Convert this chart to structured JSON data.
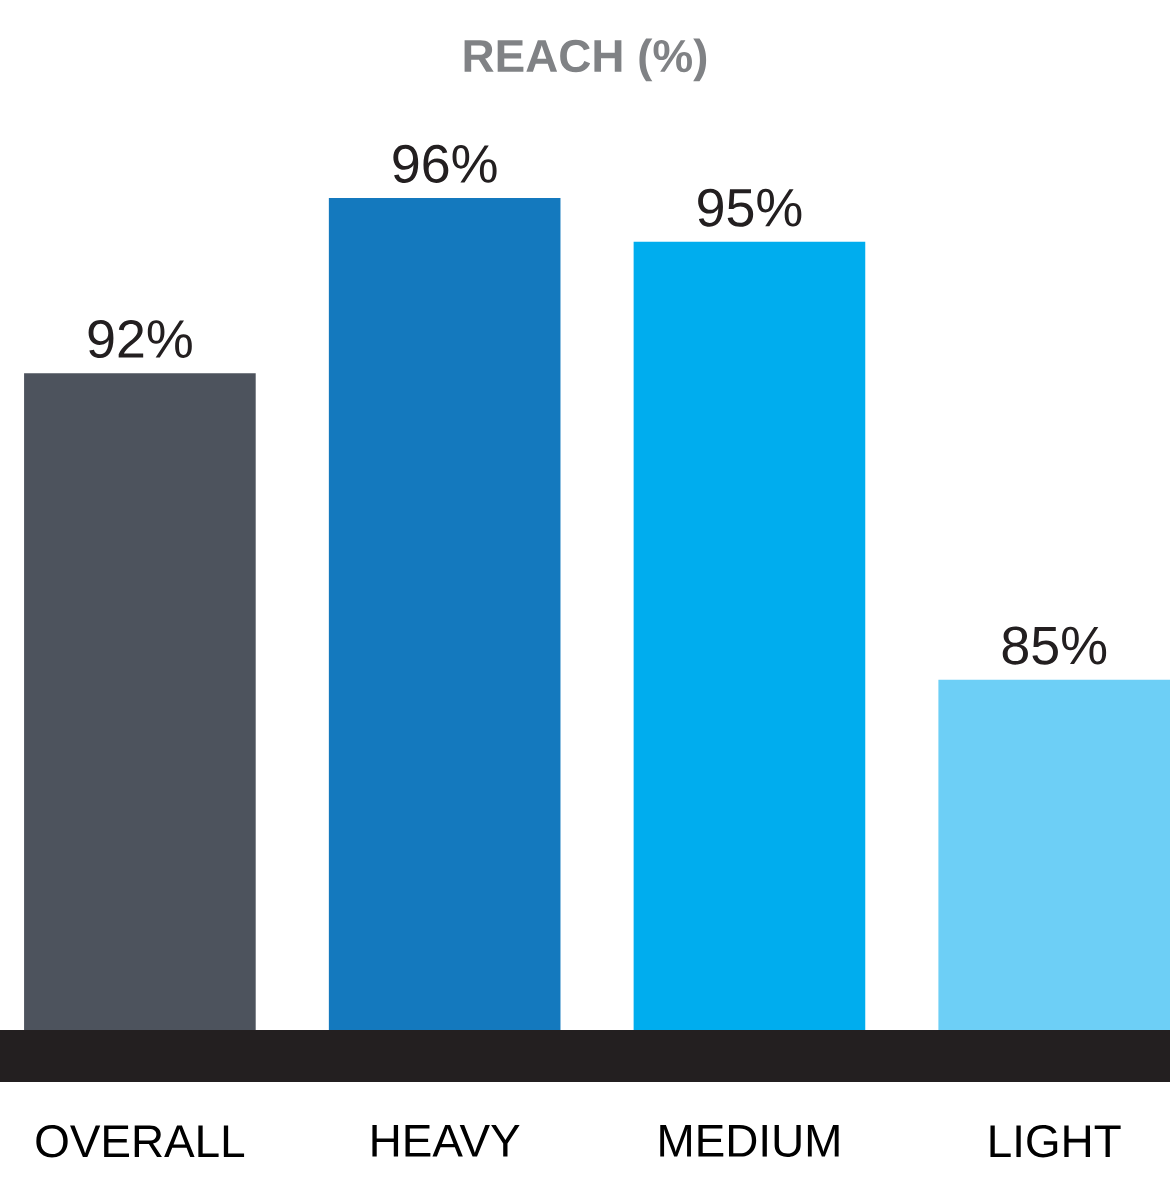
{
  "chart_data": {
    "type": "bar",
    "title": "REACH (%)",
    "categories": [
      "OVERALL",
      "HEAVY",
      "MEDIUM",
      "LIGHT"
    ],
    "values": [
      92,
      96,
      95,
      85
    ],
    "colors": [
      "#4d535d",
      "#1479be",
      "#00adee",
      "#6dcff6"
    ],
    "value_labels": [
      "92%",
      "96%",
      "95%",
      "85%"
    ],
    "ylim": [
      77,
      96
    ]
  }
}
